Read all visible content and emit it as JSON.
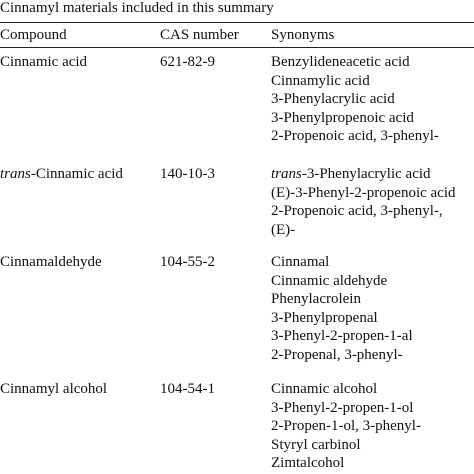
{
  "caption": "Cinnamyl materials included in this summary",
  "table": {
    "headers": [
      "Compound",
      "CAS number",
      "Synonyms"
    ],
    "rows": [
      {
        "compound": "Cinnamic acid",
        "cas": "621-82-9",
        "synonyms": [
          "Benzylideneacetic acid",
          "Cinnamylic acid",
          "3-Phenylacrylic acid",
          "3-Phenylpropenoic acid",
          "2-Propenoic acid, 3-phenyl-"
        ]
      },
      {
        "compound": [
          {
            "text": "trans",
            "italic": true
          },
          {
            "text": "-Cinnamic acid"
          }
        ],
        "cas": "140-10-3",
        "synonyms": [
          [
            {
              "text": "trans",
              "italic": true
            },
            {
              "text": "-3-Phenylacrylic acid"
            }
          ],
          "(E)-3-Phenyl-2-propenoic acid",
          "2-Propenoic acid, 3-phenyl-,",
          "(E)-"
        ]
      },
      {
        "compound": "Cinnamaldehyde",
        "cas": "104-55-2",
        "synonyms": [
          "Cinnamal",
          "Cinnamic aldehyde",
          "Phenylacrolein",
          "3-Phenylpropenal",
          "3-Phenyl-2-propen-1-al",
          "2-Propenal, 3-phenyl-"
        ]
      },
      {
        "compound": "Cinnamyl alcohol",
        "cas": "104-54-1",
        "synonyms": [
          "Cinnamic alcohol",
          "3-Phenyl-2-propen-1-ol",
          "2-Propen-1-ol, 3-phenyl-",
          "Styryl carbinol",
          "Zimtalcohol"
        ]
      }
    ]
  }
}
